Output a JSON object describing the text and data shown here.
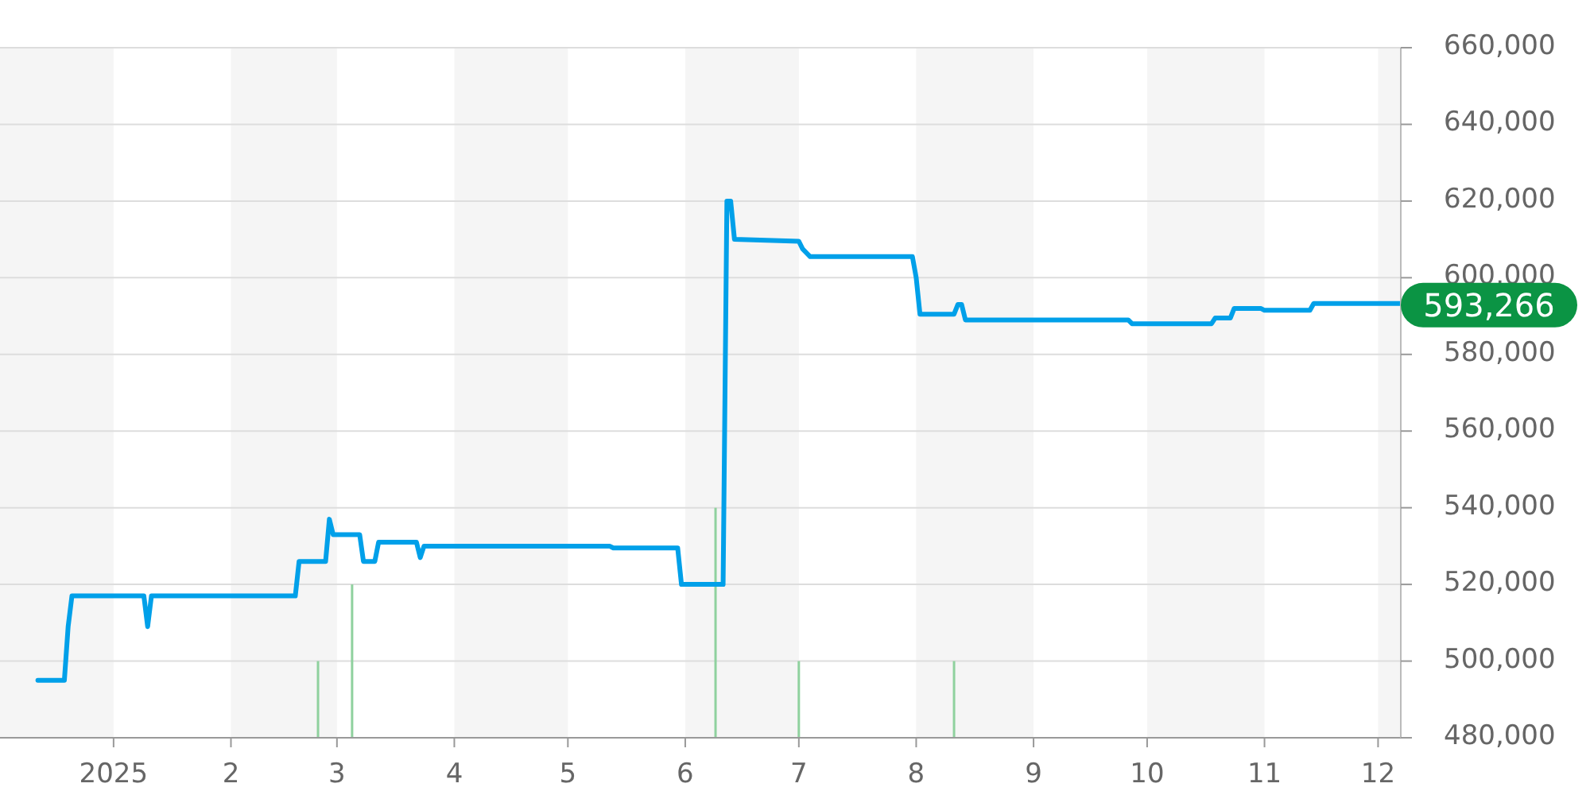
{
  "chart_data": {
    "type": "line",
    "x": [
      "2024-12-12",
      "2024-12-19",
      "2024-12-20",
      "2024-12-21",
      "2025-01-09",
      "2025-01-10",
      "2025-01-11",
      "2025-02-18",
      "2025-02-19",
      "2025-02-26",
      "2025-02-27",
      "2025-02-28",
      "2025-03-07",
      "2025-03-08",
      "2025-03-11",
      "2025-03-12",
      "2025-03-22",
      "2025-03-23",
      "2025-03-24",
      "2025-05-12",
      "2025-05-13",
      "2025-05-30",
      "2025-05-31",
      "2025-06-11",
      "2025-06-12",
      "2025-06-13",
      "2025-06-14",
      "2025-07-01",
      "2025-07-02",
      "2025-07-04",
      "2025-07-31",
      "2025-08-01",
      "2025-08-02",
      "2025-08-11",
      "2025-08-12",
      "2025-08-13",
      "2025-08-14",
      "2025-09-26",
      "2025-09-27",
      "2025-10-18",
      "2025-10-19",
      "2025-10-23",
      "2025-10-24",
      "2025-10-31",
      "2025-11-01",
      "2025-11-13",
      "2025-11-14",
      "2025-12-07"
    ],
    "series": [
      {
        "type": "bar",
        "color": "#8fd19e",
        "x": [
          "2025-02-24",
          "2025-03-05",
          "2025-06-09",
          "2025-07-01",
          "2025-08-11"
        ],
        "values": [
          500000,
          520000,
          540000,
          500000,
          500000
        ]
      },
      {
        "color": "#00a0e9",
        "values": [
          495000,
          495000,
          509000,
          517000,
          517000,
          509000,
          517000,
          517000,
          526000,
          526000,
          537000,
          533000,
          533000,
          526000,
          526000,
          531000,
          531000,
          527000,
          530000,
          530000,
          529500,
          529500,
          520000,
          520000,
          620000,
          620000,
          610000,
          609500,
          607500,
          605500,
          605500,
          600000,
          590500,
          590500,
          593000,
          593000,
          589000,
          589000,
          588000,
          588000,
          589500,
          589500,
          592000,
          592000,
          591500,
          591500,
          593266,
          593266
        ]
      }
    ],
    "xlim": [
      "2024-12-02",
      "2025-12-07"
    ],
    "xticks": [
      {
        "value": "2025-01-01",
        "label": "2025"
      },
      {
        "value": "2025-02-01",
        "label": "2"
      },
      {
        "value": "2025-03-01",
        "label": "3"
      },
      {
        "value": "2025-04-01",
        "label": "4"
      },
      {
        "value": "2025-05-01",
        "label": "5"
      },
      {
        "value": "2025-06-01",
        "label": "6"
      },
      {
        "value": "2025-07-01",
        "label": "7"
      },
      {
        "value": "2025-08-01",
        "label": "8"
      },
      {
        "value": "2025-09-01",
        "label": "9"
      },
      {
        "value": "2025-10-01",
        "label": "10"
      },
      {
        "value": "2025-11-01",
        "label": "11"
      },
      {
        "value": "2025-12-01",
        "label": "12"
      }
    ],
    "ylim": [
      480000,
      660000
    ],
    "yticks": [
      {
        "value": 480000,
        "label": "480,000"
      },
      {
        "value": 500000,
        "label": "500,000"
      },
      {
        "value": 520000,
        "label": "520,000"
      },
      {
        "value": 540000,
        "label": "540,000"
      },
      {
        "value": 560000,
        "label": "560,000"
      },
      {
        "value": 580000,
        "label": "580,000"
      },
      {
        "value": 600000,
        "label": "600,000"
      },
      {
        "value": 620000,
        "label": "620,000"
      },
      {
        "value": 640000,
        "label": "640,000"
      },
      {
        "value": 660000,
        "label": "660,000"
      }
    ],
    "grid": "y",
    "bands": [
      {
        "axis": "x",
        "from": "2024-12-02",
        "to": "2025-01-01",
        "color": "#f5f5f5"
      },
      {
        "axis": "x",
        "from": "2025-02-01",
        "to": "2025-03-01",
        "color": "#f5f5f5"
      },
      {
        "axis": "x",
        "from": "2025-04-01",
        "to": "2025-05-01",
        "color": "#f5f5f5"
      },
      {
        "axis": "x",
        "from": "2025-06-01",
        "to": "2025-07-01",
        "color": "#f5f5f5"
      },
      {
        "axis": "x",
        "from": "2025-08-01",
        "to": "2025-09-01",
        "color": "#f5f5f5"
      },
      {
        "axis": "x",
        "from": "2025-10-01",
        "to": "2025-11-01",
        "color": "#f5f5f5"
      },
      {
        "axis": "x",
        "from": "2025-12-01",
        "to": "2025-12-07",
        "color": "#f5f5f5"
      }
    ],
    "annotations": [
      {
        "text": "593,266",
        "x": "2025-12-07",
        "y": 593266
      }
    ]
  }
}
